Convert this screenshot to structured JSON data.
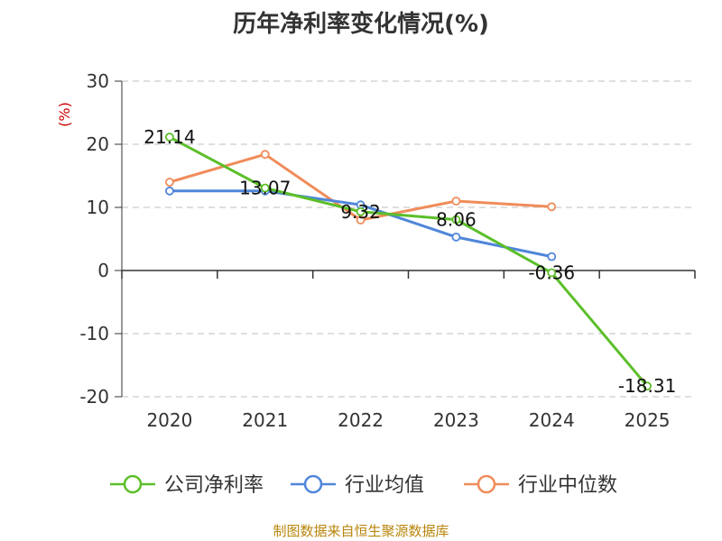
{
  "title": "历年净利率变化情况(%)",
  "footer": "制图数据来自恒生聚源数据库",
  "chart_data": {
    "type": "line",
    "title": "历年净利率变化情况(%)",
    "ylabel": "(%)",
    "categories": [
      "2020",
      "2021",
      "2022",
      "2023",
      "2024",
      "2025"
    ],
    "ylim": [
      -20,
      30
    ],
    "yticks": [
      30,
      20,
      10,
      0,
      -10,
      -20
    ],
    "grid": true,
    "legend_position": "bottom",
    "series": [
      {
        "name": "公司净利率",
        "color": "#5cbf2a",
        "values": [
          21.14,
          13.07,
          9.32,
          8.06,
          -0.36,
          -18.31
        ],
        "labels": [
          "21.14",
          "13.07",
          "9.32",
          "8.06",
          "-0.36",
          "-18.31"
        ]
      },
      {
        "name": "行业均值",
        "color": "#4f86d9",
        "values": [
          12.6,
          12.6,
          10.4,
          5.3,
          2.2,
          null
        ]
      },
      {
        "name": "行业中位数",
        "color": "#f08c5a",
        "values": [
          14.0,
          18.4,
          8.0,
          11.0,
          10.1,
          null
        ]
      }
    ]
  }
}
